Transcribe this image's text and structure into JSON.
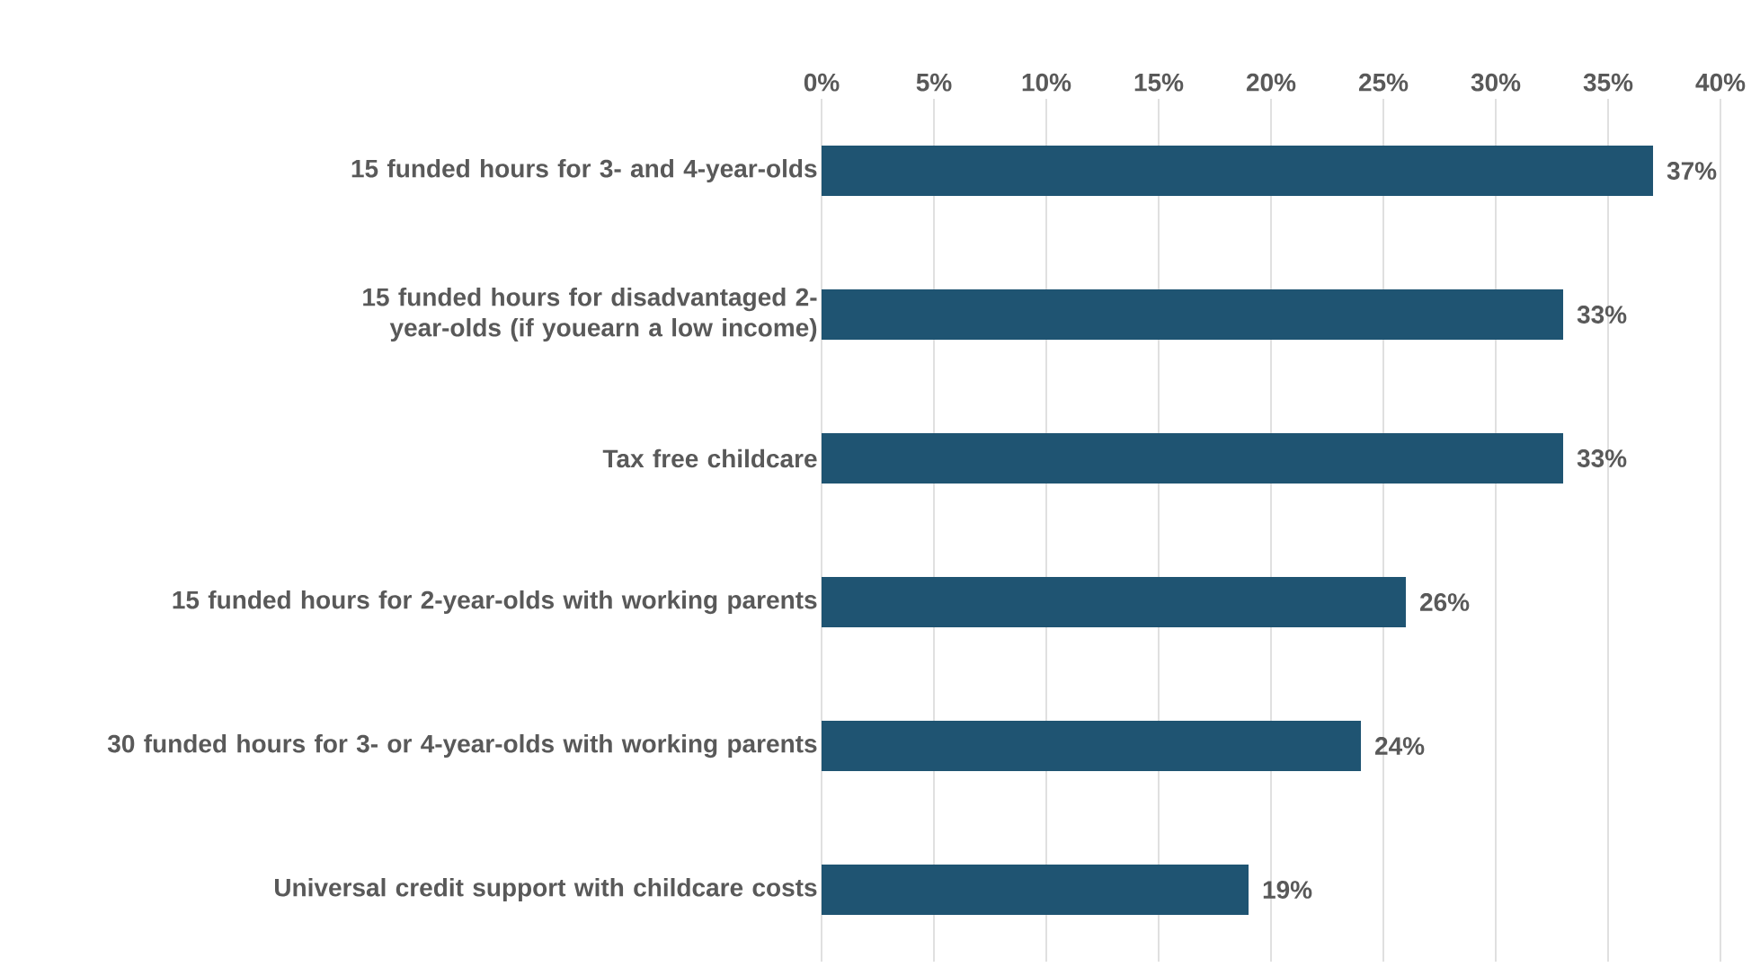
{
  "chart_data": {
    "type": "bar",
    "orientation": "horizontal",
    "categories": [
      "15 funded hours for 3- and 4-year-olds",
      "15 funded hours for disadvantaged 2-year-olds (if youearn a low income)",
      "Tax free childcare",
      "15 funded hours for 2-year-olds with working parents",
      "30 funded hours for 3- or 4-year-olds with working parents",
      "Universal credit support with childcare costs"
    ],
    "values": [
      37,
      33,
      33,
      26,
      24,
      19
    ],
    "value_labels": [
      "37%",
      "33%",
      "33%",
      "26%",
      "24%",
      "19%"
    ],
    "color": "#1f5472",
    "xlim": [
      0,
      40
    ],
    "xticks": [
      {
        "value": 0,
        "label": "0%"
      },
      {
        "value": 5,
        "label": "5%"
      },
      {
        "value": 10,
        "label": "10%"
      },
      {
        "value": 15,
        "label": "15%"
      },
      {
        "value": 20,
        "label": "20%"
      },
      {
        "value": 25,
        "label": "25%"
      },
      {
        "value": 30,
        "label": "30%"
      },
      {
        "value": 35,
        "label": "35%"
      },
      {
        "value": 40,
        "label": "40%"
      }
    ],
    "grid": "x"
  }
}
